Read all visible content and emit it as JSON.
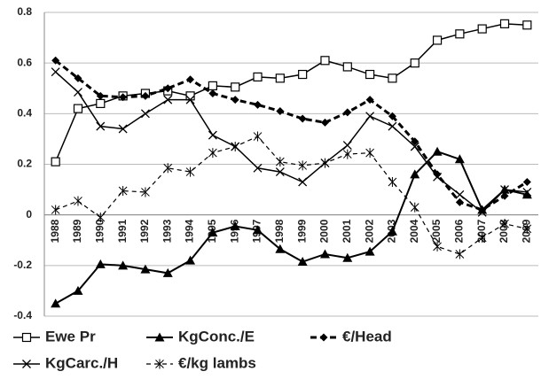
{
  "chart_data": {
    "type": "line",
    "categories": [
      "1988",
      "1989",
      "1990",
      "1991",
      "1992",
      "1993",
      "1994",
      "1995",
      "1996",
      "1997",
      "1998",
      "1999",
      "2000",
      "2001",
      "2002",
      "2003",
      "2004",
      "2005",
      "2006",
      "2007",
      "2008",
      "2009"
    ],
    "series": [
      {
        "name": "Ewe Pr",
        "color": "#000000",
        "marker": "square-open",
        "dash": "solid",
        "width": 1.5,
        "values": [
          0.21,
          0.42,
          0.44,
          0.47,
          0.48,
          0.49,
          0.47,
          0.51,
          0.505,
          0.545,
          0.54,
          0.555,
          0.61,
          0.585,
          0.555,
          0.54,
          0.6,
          0.69,
          0.715,
          0.735,
          0.755,
          0.75
        ]
      },
      {
        "name": "KgConc./E",
        "color": "#000000",
        "marker": "triangle",
        "dash": "solid",
        "width": 2,
        "values": [
          -0.35,
          -0.3,
          -0.195,
          -0.2,
          -0.215,
          -0.23,
          -0.18,
          -0.07,
          -0.045,
          -0.06,
          -0.135,
          -0.185,
          -0.155,
          -0.17,
          -0.145,
          -0.065,
          0.16,
          0.25,
          0.22,
          0.02,
          0.1,
          0.08
        ]
      },
      {
        "name": "€/Head",
        "color": "#000000",
        "marker": "diamond",
        "dash": "dashed",
        "width": 3,
        "values": [
          0.61,
          0.54,
          0.47,
          0.465,
          0.47,
          0.5,
          0.535,
          0.48,
          0.455,
          0.435,
          0.41,
          0.38,
          0.365,
          0.405,
          0.455,
          0.39,
          0.29,
          0.16,
          0.05,
          0.02,
          0.075,
          0.13
        ]
      },
      {
        "name": "KgCarc./H",
        "color": "#000000",
        "marker": "x",
        "dash": "solid",
        "width": 1.5,
        "values": [
          0.565,
          0.485,
          0.35,
          0.34,
          0.4,
          0.455,
          0.455,
          0.315,
          0.27,
          0.185,
          0.17,
          0.13,
          0.205,
          0.275,
          0.39,
          0.35,
          0.27,
          0.15,
          0.08,
          0.01,
          0.1,
          0.09
        ]
      },
      {
        "name": "€/kg lambs",
        "color": "#000000",
        "marker": "asterisk",
        "dash": "dashed",
        "width": 1.2,
        "values": [
          0.02,
          0.055,
          -0.01,
          0.095,
          0.09,
          0.185,
          0.17,
          0.245,
          0.27,
          0.31,
          0.21,
          0.195,
          0.205,
          0.24,
          0.245,
          0.13,
          0.03,
          -0.125,
          -0.155,
          -0.09,
          -0.035,
          -0.055
        ]
      }
    ],
    "ylim": [
      -0.4,
      0.8
    ],
    "yticks": [
      -0.4,
      -0.2,
      0,
      0.2,
      0.4,
      0.6,
      0.8
    ],
    "grid": true
  }
}
